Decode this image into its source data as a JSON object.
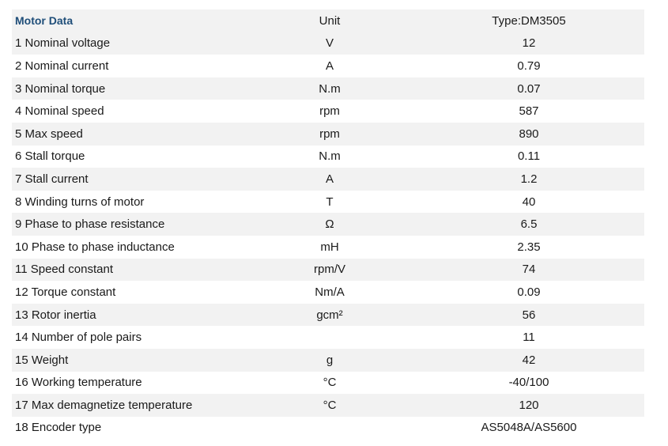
{
  "table": {
    "header": {
      "parameter": "Motor Data",
      "unit": "Unit",
      "value": "Type:DM3505"
    },
    "rows": [
      {
        "parameter": "1 Nominal voltage",
        "unit": "V",
        "value": "12"
      },
      {
        "parameter": "2 Nominal current",
        "unit": "A",
        "value": "0.79"
      },
      {
        "parameter": "3 Nominal torque",
        "unit": "N.m",
        "value": "0.07"
      },
      {
        "parameter": "4 Nominal speed",
        "unit": "rpm",
        "value": "587"
      },
      {
        "parameter": "5 Max speed",
        "unit": "rpm",
        "value": "890"
      },
      {
        "parameter": "6 Stall torque",
        "unit": "N.m",
        "value": "0.11"
      },
      {
        "parameter": "7 Stall current",
        "unit": "A",
        "value": "1.2"
      },
      {
        "parameter": "8 Winding turns of motor",
        "unit": "T",
        "value": "40"
      },
      {
        "parameter": "9 Phase to phase resistance",
        "unit": "Ω",
        "value": "6.5"
      },
      {
        "parameter": "10 Phase to phase inductance",
        "unit": "mH",
        "value": "2.35"
      },
      {
        "parameter": "11 Speed constant",
        "unit": "rpm/V",
        "value": "74"
      },
      {
        "parameter": "12 Torque constant",
        "unit": "Nm/A",
        "value": "0.09"
      },
      {
        "parameter": "13 Rotor inertia",
        "unit": "gcm²",
        "value": "56"
      },
      {
        "parameter": "14 Number of  pole pairs",
        "unit": "",
        "value": "11"
      },
      {
        "parameter": "15 Weight",
        "unit": "g",
        "value": "42"
      },
      {
        "parameter": "16 Working temperature",
        "unit": "°C",
        "value": "-40/100"
      },
      {
        "parameter": "17 Max demagnetize temperature",
        "unit": "°C",
        "value": "120"
      },
      {
        "parameter": "18 Encoder type",
        "unit": "",
        "value": "AS5048A/AS5600"
      }
    ]
  },
  "colors": {
    "header_accent": "#1f4e79",
    "stripe": "#f2f2f2"
  }
}
